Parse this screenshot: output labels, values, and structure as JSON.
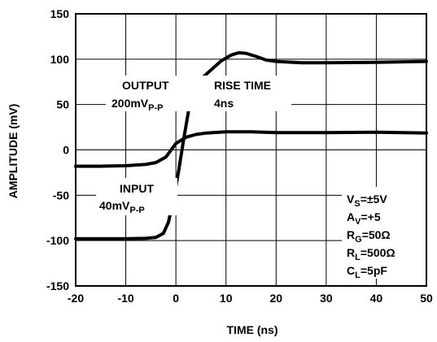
{
  "chart_data": {
    "type": "line",
    "xlabel": "TIME (ns)",
    "ylabel": "AMPLITUDE (mV)",
    "xlim": [
      -20,
      50
    ],
    "ylim": [
      -150,
      150
    ],
    "x_ticks": [
      -20,
      -10,
      0,
      10,
      20,
      30,
      40,
      50
    ],
    "y_ticks": [
      150,
      100,
      50,
      0,
      -50,
      -100,
      -150
    ],
    "grid": true,
    "series": [
      {
        "points": [
          [
            -20,
            -98
          ],
          [
            -15,
            -98
          ],
          [
            -10,
            -98
          ],
          [
            -6,
            -97.5
          ],
          [
            -4,
            -96.5
          ],
          [
            -2.5,
            -92
          ],
          [
            -1.5,
            -80
          ],
          [
            -0.5,
            -55
          ],
          [
            0.5,
            -25
          ],
          [
            1.5,
            10
          ],
          [
            2.5,
            42
          ],
          [
            3.5,
            68
          ],
          [
            5,
            78
          ],
          [
            7,
            88
          ],
          [
            9,
            98
          ],
          [
            11,
            104.5
          ],
          [
            12.5,
            107
          ],
          [
            14,
            106.5
          ],
          [
            16,
            103
          ],
          [
            18,
            99
          ],
          [
            20,
            97.5
          ],
          [
            25,
            96
          ],
          [
            30,
            96
          ],
          [
            40,
            96.5
          ],
          [
            50,
            97.5
          ]
        ]
      },
      {
        "points": [
          [
            -20,
            -18
          ],
          [
            -15,
            -18
          ],
          [
            -10,
            -17.5
          ],
          [
            -6,
            -16
          ],
          [
            -4,
            -14
          ],
          [
            -2,
            -8
          ],
          [
            0,
            7
          ],
          [
            2,
            14
          ],
          [
            4,
            17
          ],
          [
            6,
            18.5
          ],
          [
            10,
            20
          ],
          [
            15,
            20
          ],
          [
            20,
            19
          ],
          [
            30,
            19
          ],
          [
            40,
            19.5
          ],
          [
            50,
            18.5
          ]
        ]
      }
    ],
    "annotations": {
      "output_label": "OUTPUT",
      "output_value": "200mV",
      "output_value_sub": "P-P",
      "rise_label": "RISE TIME",
      "rise_value": "4ns",
      "input_label": "INPUT",
      "input_value": "40mV",
      "input_value_sub": "P-P",
      "conditions": [
        {
          "main": "V",
          "sub": "S",
          "rest": "=±5V"
        },
        {
          "main": "A",
          "sub": "V",
          "rest": "=+5"
        },
        {
          "main": "R",
          "sub": "G",
          "rest": "=50Ω"
        },
        {
          "main": "R",
          "sub": "L",
          "rest": "=500Ω"
        },
        {
          "main": "C",
          "sub": "L",
          "rest": "=5pF"
        }
      ]
    }
  }
}
